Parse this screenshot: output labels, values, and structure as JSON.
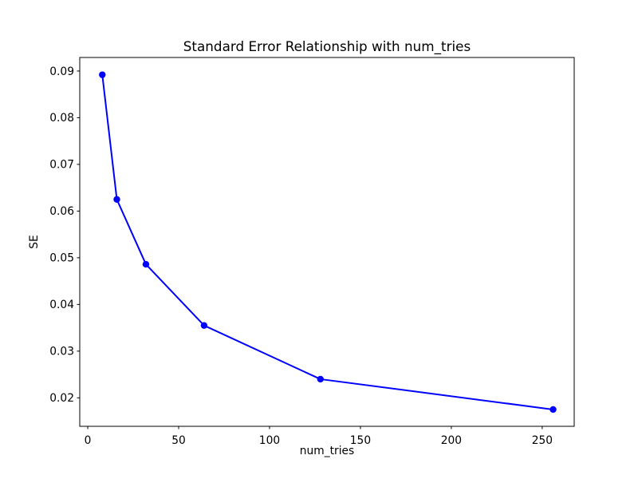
{
  "chart_data": {
    "type": "line",
    "title": "Standard Error Relationship with num_tries",
    "xlabel": "num_tries",
    "ylabel": "SE",
    "x": [
      8,
      16,
      32,
      64,
      128,
      256
    ],
    "y": [
      0.0892,
      0.0625,
      0.0486,
      0.0355,
      0.024,
      0.0175
    ],
    "series": [
      {
        "name": "SE",
        "x": [
          8,
          16,
          32,
          64,
          128,
          256
        ],
        "y": [
          0.0892,
          0.0625,
          0.0486,
          0.0355,
          0.024,
          0.0175
        ]
      }
    ],
    "xticks": [
      0,
      50,
      100,
      150,
      200,
      250
    ],
    "yticks": [
      0.02,
      0.03,
      0.04,
      0.05,
      0.06,
      0.07,
      0.08,
      0.09
    ],
    "ytick_labels": [
      "0.02",
      "0.03",
      "0.04",
      "0.05",
      "0.06",
      "0.07",
      "0.08",
      "0.09"
    ],
    "xtick_labels": [
      "0",
      "50",
      "100",
      "150",
      "200",
      "250"
    ],
    "xlim": [
      -4.4,
      267.6
    ],
    "ylim": [
      0.0139,
      0.0929
    ],
    "grid": false,
    "legend_position": "none",
    "line_color": "#0000ff",
    "marker": "circle",
    "marker_color": "#0000ff",
    "axis_color": "#000000",
    "background_color": "#ffffff"
  }
}
